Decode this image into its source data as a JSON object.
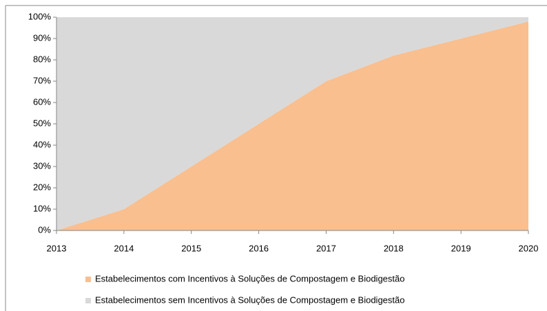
{
  "chart_data": {
    "type": "stacked_area",
    "x": [
      2013,
      2014,
      2015,
      2016,
      2017,
      2018,
      2019,
      2020
    ],
    "series": [
      {
        "name": "Estabelecimentos com Incentivos à Soluções de Compostagem  e Biodigestão",
        "color": "#f9bf8f",
        "values": [
          0,
          10,
          30,
          50,
          70,
          82,
          90,
          98
        ]
      },
      {
        "name": "Estabelecimentos sem Incentivos à Soluções de Compostagem  e Biodigestão",
        "color": "#d9d9d9",
        "values": [
          100,
          90,
          70,
          50,
          30,
          18,
          10,
          2
        ]
      }
    ],
    "xlim": [
      2013,
      2020
    ],
    "xticks": [
      2013,
      2014,
      2015,
      2016,
      2017,
      2018,
      2019,
      2020
    ],
    "ylim": [
      0,
      100
    ],
    "yticks": [
      {
        "value": 0,
        "label": "0%"
      },
      {
        "value": 10,
        "label": "10%"
      },
      {
        "value": 20,
        "label": "20%"
      },
      {
        "value": 30,
        "label": "30%"
      },
      {
        "value": 40,
        "label": "40%"
      },
      {
        "value": 50,
        "label": "50%"
      },
      {
        "value": 60,
        "label": "60%"
      },
      {
        "value": 70,
        "label": "70%"
      },
      {
        "value": 80,
        "label": "80%"
      },
      {
        "value": 90,
        "label": "90%"
      },
      {
        "value": 100,
        "label": "100%"
      }
    ],
    "legend": "bottom"
  }
}
